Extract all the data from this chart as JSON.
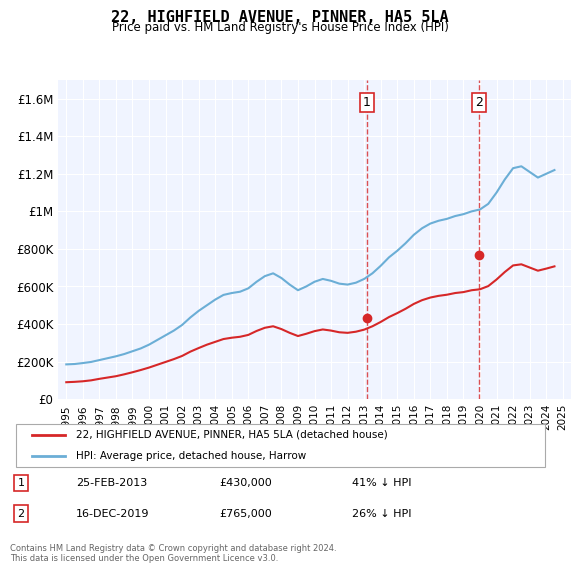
{
  "title": "22, HIGHFIELD AVENUE, PINNER, HA5 5LA",
  "subtitle": "Price paid vs. HM Land Registry's House Price Index (HPI)",
  "footer": "Contains HM Land Registry data © Crown copyright and database right 2024.\nThis data is licensed under the Open Government Licence v3.0.",
  "legend_line1": "22, HIGHFIELD AVENUE, PINNER, HA5 5LA (detached house)",
  "legend_line2": "HPI: Average price, detached house, Harrow",
  "sale1_label": "1",
  "sale1_date": "25-FEB-2013",
  "sale1_price": "£430,000",
  "sale1_hpi": "41% ↓ HPI",
  "sale2_label": "2",
  "sale2_date": "16-DEC-2019",
  "sale2_price": "£765,000",
  "sale2_hpi": "26% ↓ HPI",
  "sale1_x": 2013.15,
  "sale1_y": 430000,
  "sale2_x": 2019.96,
  "sale2_y": 765000,
  "hpi_color": "#6baed6",
  "price_color": "#d62728",
  "background_color": "#f0f4ff",
  "ylim": [
    0,
    1700000
  ],
  "xlim_start": 1994.5,
  "xlim_end": 2025.5,
  "hpi_x": [
    1995,
    1995.5,
    1996,
    1996.5,
    1997,
    1997.5,
    1998,
    1998.5,
    1999,
    1999.5,
    2000,
    2000.5,
    2001,
    2001.5,
    2002,
    2002.5,
    2003,
    2003.5,
    2004,
    2004.5,
    2005,
    2005.5,
    2006,
    2006.5,
    2007,
    2007.5,
    2008,
    2008.5,
    2009,
    2009.5,
    2010,
    2010.5,
    2011,
    2011.5,
    2012,
    2012.5,
    2013,
    2013.5,
    2014,
    2014.5,
    2015,
    2015.5,
    2016,
    2016.5,
    2017,
    2017.5,
    2018,
    2018.5,
    2019,
    2019.5,
    2020,
    2020.5,
    2021,
    2021.5,
    2022,
    2022.5,
    2023,
    2023.5,
    2024,
    2024.5
  ],
  "hpi_y": [
    185000,
    187000,
    192000,
    198000,
    208000,
    218000,
    228000,
    240000,
    255000,
    270000,
    290000,
    315000,
    340000,
    365000,
    395000,
    435000,
    470000,
    500000,
    530000,
    555000,
    565000,
    572000,
    590000,
    625000,
    655000,
    670000,
    645000,
    610000,
    580000,
    600000,
    625000,
    640000,
    630000,
    615000,
    610000,
    620000,
    640000,
    670000,
    710000,
    755000,
    790000,
    830000,
    875000,
    910000,
    935000,
    950000,
    960000,
    975000,
    985000,
    1000000,
    1010000,
    1040000,
    1100000,
    1170000,
    1230000,
    1240000,
    1210000,
    1180000,
    1200000,
    1220000
  ],
  "price_x": [
    1995,
    1995.5,
    1996,
    1996.5,
    1997,
    1997.5,
    1998,
    1998.5,
    1999,
    1999.5,
    2000,
    2000.5,
    2001,
    2001.5,
    2002,
    2002.5,
    2003,
    2003.5,
    2004,
    2004.5,
    2005,
    2005.5,
    2006,
    2006.5,
    2007,
    2007.5,
    2008,
    2008.5,
    2009,
    2009.5,
    2010,
    2010.5,
    2011,
    2011.5,
    2012,
    2012.5,
    2013,
    2013.5,
    2014,
    2014.5,
    2015,
    2015.5,
    2016,
    2016.5,
    2017,
    2017.5,
    2018,
    2018.5,
    2019,
    2019.5,
    2020,
    2020.5,
    2021,
    2021.5,
    2022,
    2022.5,
    2023,
    2023.5,
    2024,
    2024.5
  ],
  "price_y": [
    90000,
    92000,
    95000,
    100000,
    108000,
    115000,
    122000,
    132000,
    143000,
    155000,
    168000,
    183000,
    198000,
    213000,
    230000,
    253000,
    272000,
    290000,
    305000,
    320000,
    327000,
    332000,
    342000,
    363000,
    380000,
    388000,
    373000,
    353000,
    336000,
    348000,
    362000,
    371000,
    365000,
    356000,
    353000,
    359000,
    370000,
    388000,
    411000,
    437000,
    458000,
    481000,
    507000,
    527000,
    541000,
    550000,
    556000,
    565000,
    570000,
    580000,
    585000,
    602000,
    637000,
    677000,
    712000,
    718000,
    701000,
    684000,
    695000,
    707000
  ],
  "yticks": [
    0,
    200000,
    400000,
    600000,
    800000,
    1000000,
    1200000,
    1400000,
    1600000
  ],
  "ytick_labels": [
    "£0",
    "£200K",
    "£400K",
    "£600K",
    "£800K",
    "£1M",
    "£1.2M",
    "£1.4M",
    "£1.6M"
  ],
  "xticks": [
    1995,
    1996,
    1997,
    1998,
    1999,
    2000,
    2001,
    2002,
    2003,
    2004,
    2005,
    2006,
    2007,
    2008,
    2009,
    2010,
    2011,
    2012,
    2013,
    2014,
    2015,
    2016,
    2017,
    2018,
    2019,
    2020,
    2021,
    2022,
    2023,
    2024,
    2025
  ]
}
